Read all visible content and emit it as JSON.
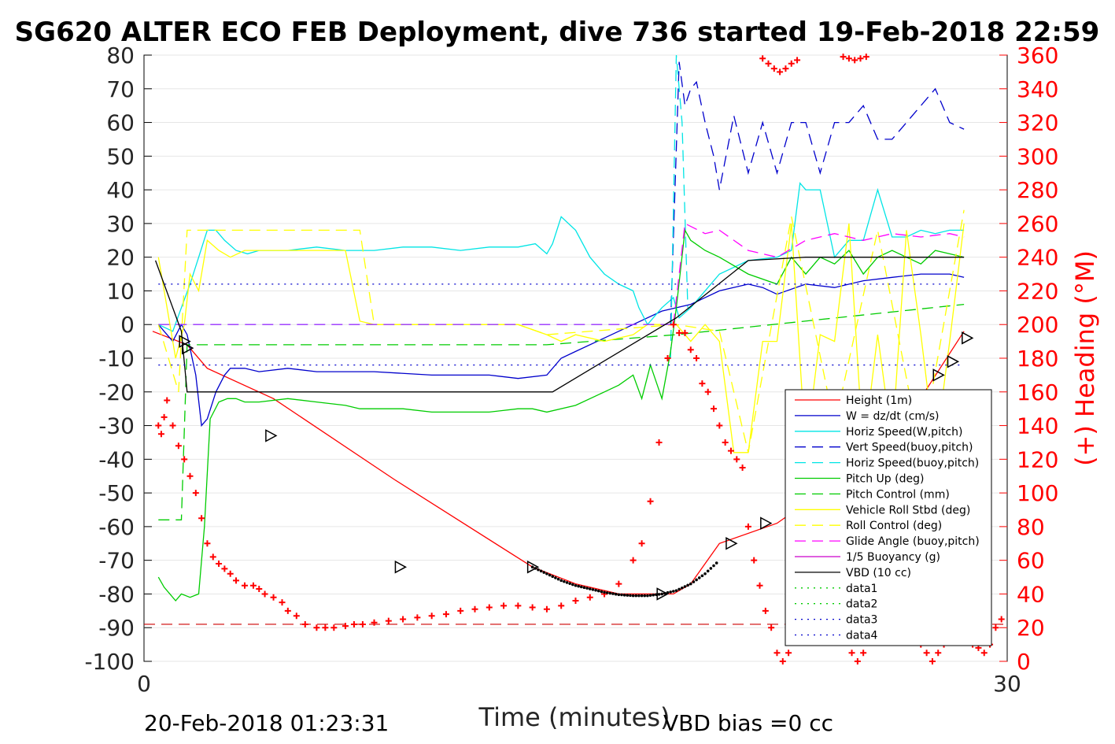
{
  "chart_data": {
    "type": "line",
    "title": "SG620 ALTER ECO FEB Deployment, dive 736 started 19-Feb-2018 22:59",
    "xlabel": "Time (minutes)",
    "ylabel_right": "(+) Heading (°M)",
    "xlim": [
      0,
      30
    ],
    "ylim_left": [
      -100,
      80
    ],
    "ylim_right": [
      0,
      360
    ],
    "x_ticks": [
      "0",
      "30"
    ],
    "y_ticks_left": [
      "80",
      "70",
      "60",
      "50",
      "40",
      "30",
      "20",
      "10",
      "0",
      "-10",
      "-20",
      "-30",
      "-40",
      "-50",
      "-60",
      "-70",
      "-80",
      "-90",
      "-100"
    ],
    "y_ticks_right": [
      "360",
      "340",
      "320",
      "300",
      "280",
      "260",
      "240",
      "220",
      "200",
      "180",
      "160",
      "140",
      "120",
      "100",
      "80",
      "60",
      "40",
      "20",
      "0"
    ],
    "footer_left": "20-Feb-2018 01:23:31",
    "footer_right": "VBD bias =0 cc",
    "grid": true,
    "legend_position": "lower-right",
    "legend": [
      {
        "label": "Height (1m)",
        "color": "#ff0000",
        "dash": "solid"
      },
      {
        "label": "W = dz/dt (cm/s)",
        "color": "#0000cc",
        "dash": "solid"
      },
      {
        "label": "Horiz Speed(W,pitch)",
        "color": "#00e5e5",
        "dash": "solid"
      },
      {
        "label": "Vert Speed(buoy,pitch)",
        "color": "#0000cc",
        "dash": "dashed"
      },
      {
        "label": "Horiz Speed(buoy,pitch)",
        "color": "#00e5e5",
        "dash": "dashed"
      },
      {
        "label": "Pitch Up (deg)",
        "color": "#00cc00",
        "dash": "solid"
      },
      {
        "label": "Pitch Control (mm)",
        "color": "#00cc00",
        "dash": "dashed"
      },
      {
        "label": "Vehicle Roll Stbd (deg)",
        "color": "#ffff00",
        "dash": "solid"
      },
      {
        "label": "Roll Control (deg)",
        "color": "#ffff00",
        "dash": "dashed"
      },
      {
        "label": "Glide Angle (buoy,pitch)",
        "color": "#ff00ff",
        "dash": "dashed"
      },
      {
        "label": "1/5 Buoyancy (g)",
        "color": "#cc00cc",
        "dash": "solid"
      },
      {
        "label": "VBD (10 cc)",
        "color": "#000000",
        "dash": "solid"
      },
      {
        "label": "data1",
        "color": "#00cc00",
        "dash": "dotted"
      },
      {
        "label": "data2",
        "color": "#00cc00",
        "dash": "dotted"
      },
      {
        "label": "data3",
        "color": "#0000cc",
        "dash": "dotted"
      },
      {
        "label": "data4",
        "color": "#0000cc",
        "dash": "dotted"
      }
    ],
    "series": [
      {
        "name": "Height (1m)",
        "axis": "left",
        "color": "#ff0000",
        "dash": "solid",
        "x": [
          0.3,
          1.5,
          2.2,
          4.5,
          8.7,
          13.5,
          15.0,
          16.5,
          18.4,
          19.0,
          20.0,
          22.0,
          24.0,
          26.0,
          28.5
        ],
        "y": [
          -2,
          -6,
          -13,
          -22,
          -46,
          -72,
          -77,
          -80,
          -80,
          -77,
          -65,
          -59,
          -47,
          -35,
          -2
        ]
      },
      {
        "name": "W = dz/dt (cm/s)",
        "axis": "left",
        "color": "#0000cc",
        "dash": "solid",
        "x": [
          0.5,
          0.7,
          1.0,
          1.3,
          1.5,
          1.8,
          2.0,
          2.2,
          2.5,
          2.8,
          3.0,
          3.5,
          4.0,
          5.0,
          6.0,
          8.0,
          10.0,
          12.0,
          13.0,
          14.0,
          14.5,
          15.0,
          16.0,
          17.0,
          18.0,
          19.0,
          20.0,
          21.0,
          21.5,
          22.0,
          23.0,
          24.0,
          25.0,
          26.0,
          27.0,
          28.0,
          28.5
        ],
        "y": [
          0,
          -2,
          -5,
          0,
          -3,
          -15,
          -30,
          -28,
          -20,
          -15,
          -13,
          -13,
          -14,
          -13,
          -14,
          -14,
          -15,
          -15,
          -16,
          -15,
          -10,
          -8,
          -4,
          0,
          4,
          6,
          10,
          12,
          11,
          9,
          12,
          11,
          13,
          14,
          15,
          15,
          14
        ]
      },
      {
        "name": "Horiz Speed(W,pitch)",
        "axis": "left",
        "color": "#00e5e5",
        "dash": "solid",
        "x": [
          0.5,
          1.0,
          1.3,
          1.6,
          1.9,
          2.2,
          2.5,
          2.8,
          3.2,
          3.6,
          4.0,
          5.0,
          6.0,
          7.0,
          8.0,
          9.0,
          10.0,
          11.0,
          12.0,
          13.0,
          13.6,
          14.0,
          14.2,
          14.5,
          15.0,
          15.5,
          16.0,
          16.5,
          17.0,
          17.2,
          17.5,
          18.0,
          18.4,
          18.6,
          19.0,
          19.5,
          20.0,
          21.0,
          22.0,
          22.5,
          22.8,
          23.0,
          23.5,
          24.0,
          24.5,
          25.0,
          25.5,
          26.0,
          26.5,
          27.0,
          27.5,
          28.0,
          28.5
        ],
        "y": [
          0,
          -2,
          5,
          12,
          20,
          28,
          28,
          25,
          22,
          21,
          22,
          22,
          23,
          22,
          22,
          23,
          23,
          22,
          23,
          23,
          24,
          21,
          24,
          32,
          28,
          20,
          15,
          12,
          10,
          5,
          0,
          5,
          8,
          2,
          5,
          10,
          15,
          19,
          20,
          22,
          42,
          40,
          40,
          20,
          25,
          25,
          40,
          26,
          26,
          28,
          27,
          28,
          28
        ]
      },
      {
        "name": "Vert Speed(buoy,pitch)",
        "axis": "left",
        "color": "#0000cc",
        "dash": "dashed",
        "x": [
          18.3,
          18.6,
          18.8,
          19.0,
          19.2,
          19.5,
          19.8,
          20.0,
          20.5,
          21.0,
          21.5,
          22.0,
          22.5,
          23.0,
          23.5,
          24.0,
          24.5,
          25.0,
          25.5,
          26.0,
          26.5,
          27.0,
          27.5,
          28.0,
          28.5
        ],
        "y": [
          0,
          78,
          65,
          70,
          72,
          60,
          50,
          40,
          62,
          45,
          60,
          45,
          60,
          60,
          45,
          60,
          60,
          65,
          55,
          55,
          60,
          65,
          70,
          60,
          58
        ]
      },
      {
        "name": "Horiz Speed(buoy,pitch)",
        "axis": "left",
        "color": "#00e5e5",
        "dash": "dashed",
        "x": [
          18.3,
          18.5,
          18.7,
          18.9
        ],
        "y": [
          -10,
          80,
          60,
          5
        ]
      },
      {
        "name": "Pitch Up (deg)",
        "axis": "left",
        "color": "#00cc00",
        "dash": "solid",
        "x": [
          0.5,
          0.7,
          0.9,
          1.1,
          1.3,
          1.6,
          1.9,
          2.1,
          2.3,
          2.6,
          2.9,
          3.2,
          3.5,
          4.0,
          5.0,
          6.0,
          7.0,
          7.5,
          8.0,
          9.0,
          10.0,
          11.0,
          12.0,
          13.0,
          13.5,
          14.0,
          15.0,
          16.0,
          16.5,
          17.0,
          17.3,
          17.6,
          18.0,
          18.3,
          18.5,
          18.8,
          19.0,
          19.5,
          20.0,
          21.0,
          22.0,
          22.5,
          23.0,
          23.5,
          24.0,
          24.5,
          25.0,
          25.5,
          26.0,
          26.5,
          27.0,
          27.5,
          28.0,
          28.5
        ],
        "y": [
          -75,
          -78,
          -80,
          -82,
          -80,
          -81,
          -80,
          -60,
          -28,
          -23,
          -22,
          -22,
          -23,
          -23,
          -22,
          -23,
          -24,
          -25,
          -25,
          -25,
          -26,
          -26,
          -26,
          -25,
          -25,
          -26,
          -24,
          -20,
          -18,
          -15,
          -22,
          -12,
          -22,
          -8,
          5,
          28,
          25,
          22,
          20,
          15,
          12,
          20,
          15,
          20,
          18,
          22,
          15,
          20,
          22,
          20,
          18,
          22,
          21,
          20
        ]
      },
      {
        "name": "Pitch Control (mm)",
        "axis": "left",
        "color": "#00cc00",
        "dash": "dashed",
        "x": [
          0.5,
          1.3,
          1.5,
          14.0,
          18.5,
          28.5
        ],
        "y": [
          -58,
          -58,
          -6,
          -6,
          -3,
          6
        ]
      },
      {
        "name": "Vehicle Roll Stbd (deg)",
        "axis": "left",
        "color": "#ffff00",
        "dash": "solid",
        "x": [
          0.5,
          0.8,
          1.1,
          1.4,
          1.6,
          1.9,
          2.2,
          2.6,
          3.0,
          3.5,
          4.0,
          5.0,
          6.0,
          7.0,
          7.5,
          8.0,
          9.0,
          10.0,
          11.0,
          12.0,
          13.0,
          14.0,
          14.5,
          15.0,
          16.0,
          17.0,
          17.5,
          18.0,
          18.5,
          19.0,
          19.5,
          20.0,
          20.5,
          21.0,
          21.5,
          22.0,
          22.5,
          23.0,
          23.5,
          24.0,
          24.5,
          25.0,
          25.5,
          26.0,
          26.5,
          27.0,
          27.5,
          28.0,
          28.5
        ],
        "y": [
          20,
          5,
          -10,
          0,
          15,
          10,
          25,
          22,
          20,
          22,
          22,
          22,
          22,
          22,
          1,
          0,
          0,
          0,
          0,
          0,
          0,
          -3,
          -5,
          -3,
          -5,
          -3,
          0,
          0,
          0,
          -5,
          0,
          -5,
          -38,
          -38,
          -5,
          -5,
          30,
          -38,
          -3,
          -5,
          30,
          -38,
          -3,
          -35,
          28,
          -3,
          -38,
          -5,
          30
        ]
      },
      {
        "name": "Roll Control (deg)",
        "axis": "left",
        "color": "#ffff00",
        "dash": "dashed",
        "x": [
          0.5,
          1.2,
          1.5,
          2.5,
          4.0,
          7.5,
          8.0,
          13.0,
          14.0,
          18.5,
          20.0,
          21.0,
          22.5,
          24.0,
          25.5,
          27.0,
          28.5
        ],
        "y": [
          0,
          -20,
          28,
          28,
          28,
          28,
          0,
          0,
          -3,
          0,
          -2,
          -38,
          32,
          -30,
          28,
          -38,
          34
        ]
      },
      {
        "name": "Glide Angle (buoy,pitch)",
        "axis": "left",
        "color": "#ff00ff",
        "dash": "dashed",
        "x": [
          18.4,
          18.8,
          19.5,
          20.0,
          21.0,
          22.0,
          23.0,
          24.0,
          25.0,
          26.0,
          27.0,
          28.0,
          28.5
        ],
        "y": [
          0,
          30,
          27,
          28,
          22,
          20,
          25,
          27,
          25,
          27,
          26,
          27,
          26
        ]
      },
      {
        "name": "1/5 Buoyancy (g)",
        "axis": "left",
        "color": "#9933ff",
        "dash": "dashed",
        "x": [
          0.5,
          18.4
        ],
        "y": [
          0,
          0
        ]
      },
      {
        "name": "VBD (10 cc)",
        "axis": "left",
        "color": "#000000",
        "dash": "solid",
        "x": [
          0.4,
          1.3,
          1.5,
          13.0,
          14.2,
          18.5,
          21.0,
          23.0,
          28.5
        ],
        "y": [
          19,
          -2,
          -20,
          -20,
          -20,
          2,
          19,
          20,
          20
        ]
      },
      {
        "name": "data1",
        "axis": "left",
        "color": "#00cc00",
        "dash": "dotted",
        "x": [
          0,
          0
        ],
        "y": [
          0,
          0
        ]
      },
      {
        "name": "data2",
        "axis": "left",
        "color": "#00cc00",
        "dash": "dotted",
        "x": [
          0,
          0
        ],
        "y": [
          0,
          0
        ]
      },
      {
        "name": "data3",
        "axis": "left",
        "color": "#0000cc",
        "dash": "dotted",
        "x": [
          0.5,
          28.5
        ],
        "y": [
          12,
          12
        ]
      },
      {
        "name": "data4",
        "axis": "left",
        "color": "#0000cc",
        "dash": "dotted",
        "x": [
          0.5,
          28.5
        ],
        "y": [
          -12,
          -12
        ]
      },
      {
        "name": "Heading",
        "axis": "right",
        "type": "scatter",
        "marker": "+",
        "color": "#ff0000",
        "x": [
          0.5,
          0.6,
          0.7,
          0.8,
          1.0,
          1.2,
          1.4,
          1.6,
          1.8,
          2.0,
          2.2,
          2.4,
          2.6,
          2.8,
          3.0,
          3.2,
          3.5,
          3.8,
          4.0,
          4.2,
          4.5,
          4.8,
          5.0,
          5.3,
          5.6,
          6.0,
          6.3,
          6.6,
          7.0,
          7.3,
          7.6,
          8.0,
          8.5,
          9.0,
          9.5,
          10.0,
          10.5,
          11.0,
          11.5,
          12.0,
          12.5,
          13.0,
          13.5,
          14.0,
          14.5,
          15.0,
          15.5,
          16.0,
          16.5,
          17.0,
          17.3,
          17.6,
          17.9,
          18.2,
          18.4,
          18.6,
          18.8,
          19.0,
          19.2,
          19.4,
          19.6,
          19.8,
          20.0,
          20.2,
          20.4,
          20.6,
          20.8,
          21.0,
          21.2,
          21.4,
          21.6,
          21.8,
          22.0,
          22.2,
          22.4,
          22.6,
          22.8,
          23.0,
          23.2,
          23.4,
          23.6,
          23.8,
          24.0,
          24.2,
          24.4,
          24.6,
          24.8,
          25.0,
          25.2,
          25.4,
          25.6,
          25.8,
          26.0,
          26.2,
          26.4,
          26.6,
          26.8,
          27.0,
          27.2,
          27.4,
          27.6,
          27.8,
          28.0,
          28.2,
          28.4,
          28.6,
          28.8,
          29.0,
          29.2,
          29.4,
          29.6,
          29.8
        ],
        "y": [
          140,
          135,
          145,
          155,
          140,
          128,
          120,
          110,
          100,
          85,
          70,
          62,
          58,
          55,
          52,
          48,
          45,
          45,
          43,
          40,
          38,
          35,
          30,
          27,
          22,
          20,
          20,
          20,
          21,
          22,
          22,
          23,
          24,
          25,
          26,
          27,
          28,
          30,
          31,
          32,
          33,
          33,
          32,
          31,
          33,
          36,
          38,
          40,
          46,
          60,
          70,
          95,
          130,
          180,
          200,
          195,
          195,
          185,
          180,
          165,
          160,
          150,
          140,
          130,
          125,
          120,
          115,
          80,
          60,
          45,
          30,
          20,
          5,
          0,
          5,
          15,
          25,
          30,
          35,
          38,
          40,
          42,
          40,
          30,
          15,
          5,
          0,
          5,
          15,
          25,
          35,
          40,
          42,
          40,
          38,
          30,
          15,
          10,
          5,
          0,
          5,
          10,
          20,
          25,
          20,
          15,
          10,
          8,
          5,
          10,
          20,
          25
        ]
      },
      {
        "name": "Heading top",
        "axis": "right",
        "type": "scatter",
        "marker": "+",
        "color": "#ff0000",
        "x": [
          21.5,
          21.7,
          21.9,
          22.1,
          22.3,
          22.5,
          22.7,
          24.3,
          24.5,
          24.7,
          24.9,
          25.1
        ],
        "y": [
          358,
          355,
          352,
          350,
          352,
          355,
          357,
          359,
          358,
          357,
          358,
          359
        ]
      }
    ],
    "triangle_markers": {
      "x": [
        1.4,
        1.5,
        4.4,
        8.9,
        13.5,
        18.0,
        20.4,
        21.6,
        22.6,
        23.6,
        24.5,
        25.2,
        26.0,
        26.8,
        27.6,
        28.1,
        28.6
      ],
      "y": [
        -5,
        -7,
        -33,
        -72,
        -72,
        -80,
        -65,
        -59,
        -53,
        -47,
        -41,
        -36,
        -29,
        -22,
        -15,
        -11,
        -4
      ]
    },
    "dotted_curve": {
      "x": [
        13.5,
        14.0,
        14.5,
        15.0,
        15.5,
        16.0,
        16.5,
        17.0,
        17.5,
        18.0,
        18.5,
        19.0,
        19.5,
        20.0
      ],
      "y": [
        -72,
        -74,
        -76,
        -77.5,
        -78.5,
        -79.5,
        -80.2,
        -80.5,
        -80.5,
        -80,
        -79,
        -77,
        -74,
        -70
      ]
    },
    "ref_lines": [
      {
        "axis": "left",
        "y": -89,
        "color": "#cc0000",
        "dash": "dashed"
      }
    ]
  }
}
